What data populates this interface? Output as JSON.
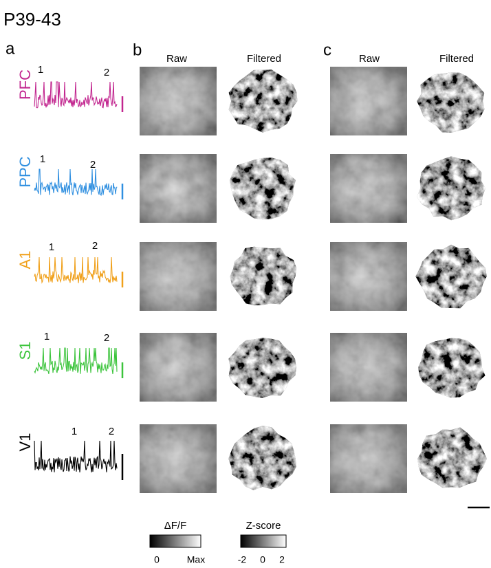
{
  "title": "P39-43",
  "panels": {
    "a": "a",
    "b": "b",
    "c": "c"
  },
  "column_headers": {
    "b": [
      "Raw",
      "Filtered"
    ],
    "c": [
      "Raw",
      "Filtered"
    ]
  },
  "traces": [
    {
      "label": "PFC",
      "color": "#c2268f",
      "markers": [
        "1",
        "2"
      ]
    },
    {
      "label": "PPC",
      "color": "#2f8fe0",
      "markers": [
        "1",
        "2"
      ]
    },
    {
      "label": "A1",
      "color": "#f0a01a",
      "markers": [
        "1",
        "2"
      ]
    },
    {
      "label": "S1",
      "color": "#3cc43c",
      "markers": [
        "1",
        "2"
      ]
    },
    {
      "label": "V1",
      "color": "#000000",
      "markers": [
        "1",
        "2"
      ]
    }
  ],
  "colorbars": [
    {
      "title": "ΔF/F",
      "ticks": [
        "0",
        "Max"
      ]
    },
    {
      "title": "Z-score",
      "ticks": [
        "-2",
        "0",
        "2"
      ]
    }
  ]
}
